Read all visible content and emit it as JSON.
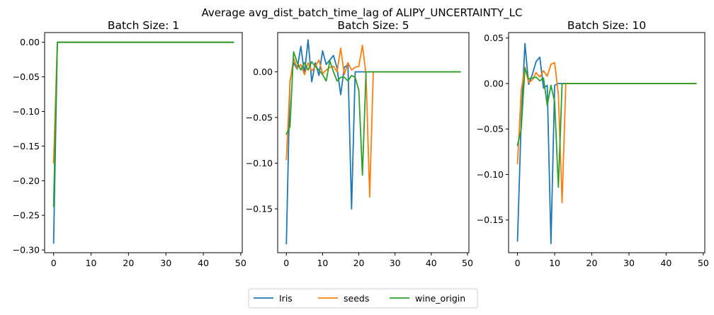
{
  "title": "Average avg_dist_batch_time_lag of ALIPY_UNCERTAINTY_LC",
  "legend": {
    "placement": "bottom-center",
    "entries": [
      {
        "name": "Iris",
        "color": "#1f77b4"
      },
      {
        "name": "seeds",
        "color": "#ff7f0e"
      },
      {
        "name": "wine_origin",
        "color": "#2ca02c"
      }
    ]
  },
  "chart_data": [
    {
      "type": "line",
      "title": "Batch Size: 1",
      "xlim": [
        -2.4,
        50.4
      ],
      "ylim": [
        -0.304,
        0.014
      ],
      "xticks": [
        0,
        10,
        20,
        30,
        40,
        50
      ],
      "xtick_labels": [
        "0",
        "10",
        "20",
        "30",
        "40",
        "50"
      ],
      "yticks": [
        -0.3,
        -0.25,
        -0.2,
        -0.15,
        -0.1,
        -0.05,
        0.0
      ],
      "ytick_labels": [
        "−0.30",
        "−0.25",
        "−0.20",
        "−0.15",
        "−0.10",
        "−0.05",
        "0.00"
      ],
      "grid": false,
      "series": [
        {
          "name": "Iris",
          "points": [
            [
              0,
              -0.29
            ],
            [
              1,
              0.0
            ],
            [
              48,
              0.0
            ]
          ]
        },
        {
          "name": "seeds",
          "points": [
            [
              0,
              -0.174
            ],
            [
              1,
              0.0
            ],
            [
              48,
              0.0
            ]
          ]
        },
        {
          "name": "wine_origin",
          "points": [
            [
              0,
              -0.237
            ],
            [
              1,
              0.0
            ],
            [
              48,
              0.0
            ]
          ]
        }
      ]
    },
    {
      "type": "line",
      "title": "Batch Size: 5",
      "xlim": [
        -2.4,
        50.4
      ],
      "ylim": [
        -0.198,
        0.043
      ],
      "xticks": [
        0,
        10,
        20,
        30,
        40,
        50
      ],
      "xtick_labels": [
        "0",
        "10",
        "20",
        "30",
        "40",
        "50"
      ],
      "yticks": [
        -0.15,
        -0.1,
        -0.05,
        0.0
      ],
      "ytick_labels": [
        "−0.15",
        "−0.10",
        "−0.05",
        "0.00"
      ],
      "grid": false,
      "series": [
        {
          "name": "Iris",
          "points": [
            [
              0,
              -0.188
            ],
            [
              1,
              -0.01
            ],
            [
              2,
              0.01
            ],
            [
              3,
              0.003
            ],
            [
              4,
              0.028
            ],
            [
              5,
              -0.002
            ],
            [
              6,
              0.035
            ],
            [
              7,
              -0.011
            ],
            [
              8,
              0.01
            ],
            [
              9,
              -0.004
            ],
            [
              10,
              0.023
            ],
            [
              11,
              0.008
            ],
            [
              12,
              0.013
            ],
            [
              13,
              0.018
            ],
            [
              14,
              0.004
            ],
            [
              15,
              -0.025
            ],
            [
              16,
              0.005
            ],
            [
              17,
              0.008
            ],
            [
              18,
              -0.15
            ],
            [
              19,
              0.0
            ],
            [
              20,
              0.0
            ],
            [
              21,
              0.0
            ],
            [
              22,
              0.0
            ],
            [
              48,
              0.0
            ]
          ]
        },
        {
          "name": "seeds",
          "points": [
            [
              0,
              -0.096
            ],
            [
              1,
              -0.012
            ],
            [
              2,
              0.015
            ],
            [
              3,
              0.004
            ],
            [
              4,
              0.008
            ],
            [
              5,
              -0.003
            ],
            [
              6,
              0.01
            ],
            [
              7,
              0.001
            ],
            [
              8,
              0.006
            ],
            [
              9,
              0.013
            ],
            [
              10,
              -0.002
            ],
            [
              11,
              0.002
            ],
            [
              12,
              0.005
            ],
            [
              13,
              0.006
            ],
            [
              14,
              0.0
            ],
            [
              15,
              0.026
            ],
            [
              16,
              -0.003
            ],
            [
              17,
              0.01
            ],
            [
              18,
              0.002
            ],
            [
              19,
              0.005
            ],
            [
              20,
              0.006
            ],
            [
              21,
              0.029
            ],
            [
              22,
              -0.003
            ],
            [
              23,
              -0.137
            ],
            [
              24,
              0.0
            ],
            [
              48,
              0.0
            ]
          ]
        },
        {
          "name": "wine_origin",
          "points": [
            [
              0,
              -0.068
            ],
            [
              1,
              -0.06
            ],
            [
              2,
              0.022
            ],
            [
              3,
              0.01
            ],
            [
              4,
              0.002
            ],
            [
              5,
              0.01
            ],
            [
              6,
              0.002
            ],
            [
              7,
              0.011
            ],
            [
              8,
              0.006
            ],
            [
              9,
              0.002
            ],
            [
              10,
              -0.003
            ],
            [
              11,
              -0.01
            ],
            [
              12,
              0.012
            ],
            [
              13,
              0.0
            ],
            [
              14,
              -0.01
            ],
            [
              15,
              -0.006
            ],
            [
              16,
              -0.006
            ],
            [
              17,
              -0.01
            ],
            [
              18,
              -0.004
            ],
            [
              19,
              -0.006
            ],
            [
              20,
              -0.02
            ],
            [
              21,
              -0.113
            ],
            [
              22,
              0.0
            ],
            [
              48,
              0.0
            ]
          ]
        }
      ]
    },
    {
      "type": "line",
      "title": "Batch Size: 10",
      "xlim": [
        -2.4,
        50.4
      ],
      "ylim": [
        -0.186,
        0.056
      ],
      "xticks": [
        0,
        10,
        20,
        30,
        40,
        50
      ],
      "xtick_labels": [
        "0",
        "10",
        "20",
        "30",
        "40",
        "50"
      ],
      "yticks": [
        -0.15,
        -0.1,
        -0.05,
        0.0,
        0.05
      ],
      "ytick_labels": [
        "−0.15",
        "−0.10",
        "−0.05",
        "0.00",
        "0.05"
      ],
      "grid": false,
      "series": [
        {
          "name": "Iris",
          "points": [
            [
              0,
              -0.173
            ],
            [
              1,
              -0.04
            ],
            [
              2,
              0.044
            ],
            [
              3,
              -0.001
            ],
            [
              4,
              0.01
            ],
            [
              5,
              0.024
            ],
            [
              6,
              0.029
            ],
            [
              7,
              -0.005
            ],
            [
              8,
              -0.002
            ],
            [
              9,
              -0.176
            ],
            [
              10,
              -0.002
            ],
            [
              11,
              0.0
            ],
            [
              48,
              0.0
            ]
          ]
        },
        {
          "name": "seeds",
          "points": [
            [
              0,
              -0.088
            ],
            [
              1,
              -0.008
            ],
            [
              2,
              0.018
            ],
            [
              3,
              0.001
            ],
            [
              4,
              0.004
            ],
            [
              5,
              0.012
            ],
            [
              6,
              0.007
            ],
            [
              7,
              0.014
            ],
            [
              8,
              0.008
            ],
            [
              9,
              0.021
            ],
            [
              10,
              0.023
            ],
            [
              11,
              -0.012
            ],
            [
              12,
              -0.131
            ],
            [
              13,
              0.0
            ],
            [
              48,
              0.0
            ]
          ]
        },
        {
          "name": "wine_origin",
          "points": [
            [
              0,
              -0.068
            ],
            [
              1,
              -0.05
            ],
            [
              2,
              0.017
            ],
            [
              3,
              0.005
            ],
            [
              4,
              0.006
            ],
            [
              5,
              0.007
            ],
            [
              6,
              0.003
            ],
            [
              7,
              0.006
            ],
            [
              8,
              -0.024
            ],
            [
              9,
              -0.002
            ],
            [
              10,
              -0.02
            ],
            [
              11,
              -0.114
            ],
            [
              12,
              0.0
            ],
            [
              48,
              0.0
            ]
          ]
        }
      ]
    }
  ]
}
